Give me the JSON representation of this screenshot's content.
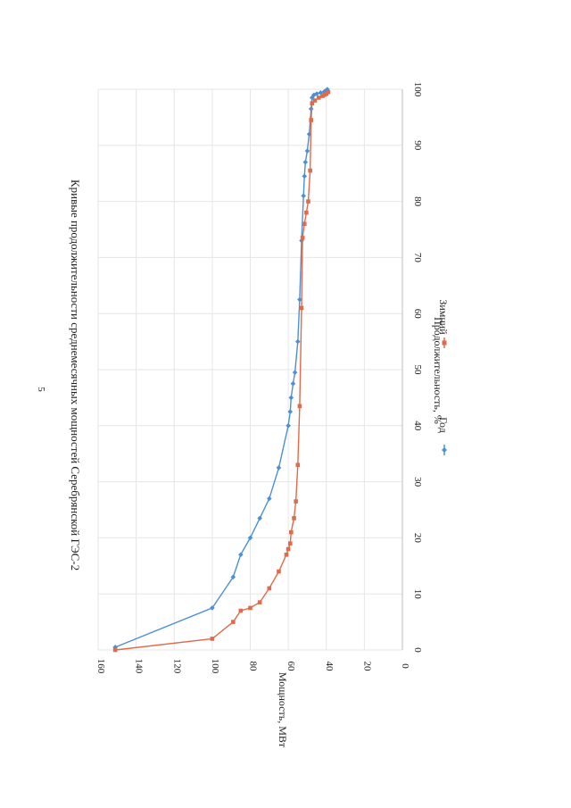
{
  "page": {
    "number": "5"
  },
  "chart_data": {
    "type": "line",
    "title": "Кривые продолжительности среднемесячных мощностей Серебрянской ГЭС-2",
    "xlabel": "Продолжительность, %",
    "ylabel": "Мощность, МВт",
    "xlim": [
      0,
      100
    ],
    "ylim": [
      0,
      160
    ],
    "xticks": [
      "0",
      "10",
      "20",
      "30",
      "40",
      "50",
      "60",
      "70",
      "80",
      "90",
      "100"
    ],
    "yticks": [
      "0",
      "20",
      "40",
      "60",
      "80",
      "100",
      "120",
      "140",
      "160"
    ],
    "grid": true,
    "legend": "bottom",
    "series": [
      {
        "name": "Год",
        "color": "#4a90d9",
        "marker": "diamond",
        "points": [
          [
            0.5,
            151
          ],
          [
            7.5,
            100
          ],
          [
            13,
            89
          ],
          [
            17,
            85
          ],
          [
            20,
            80
          ],
          [
            23.5,
            75
          ],
          [
            27,
            70
          ],
          [
            32.5,
            65
          ],
          [
            40,
            60
          ],
          [
            42.5,
            59
          ],
          [
            45,
            58.5
          ],
          [
            47.5,
            57.5
          ],
          [
            49.5,
            56.5
          ],
          [
            55,
            55
          ],
          [
            62.5,
            54
          ],
          [
            73,
            53
          ],
          [
            81,
            52
          ],
          [
            84.5,
            51.5
          ],
          [
            87,
            51
          ],
          [
            89,
            50
          ],
          [
            92,
            49
          ],
          [
            96.5,
            48
          ],
          [
            98.5,
            47.5
          ],
          [
            99,
            46.5
          ],
          [
            99.2,
            45
          ],
          [
            99.4,
            43
          ],
          [
            99.6,
            41
          ],
          [
            99.8,
            40
          ],
          [
            100,
            39.5
          ]
        ]
      },
      {
        "name": "Зимний",
        "color": "#e06a4a",
        "marker": "square",
        "points": [
          [
            0,
            151
          ],
          [
            2,
            100
          ],
          [
            5,
            89
          ],
          [
            7,
            85
          ],
          [
            7.5,
            80
          ],
          [
            8.5,
            75
          ],
          [
            11,
            70
          ],
          [
            14,
            65
          ],
          [
            17,
            61
          ],
          [
            18,
            60
          ],
          [
            19,
            59
          ],
          [
            21,
            58.5
          ],
          [
            23.5,
            57
          ],
          [
            26.5,
            56
          ],
          [
            33,
            55
          ],
          [
            43.5,
            54
          ],
          [
            61,
            53
          ],
          [
            73.5,
            52.5
          ],
          [
            76,
            51.5
          ],
          [
            78,
            50.5
          ],
          [
            80,
            49.5
          ],
          [
            85.5,
            48.5
          ],
          [
            94.5,
            48
          ],
          [
            97.5,
            47.5
          ],
          [
            98,
            46
          ],
          [
            98.5,
            44
          ],
          [
            98.8,
            42
          ],
          [
            99,
            41
          ],
          [
            99.2,
            40
          ],
          [
            99.5,
            39
          ]
        ]
      }
    ]
  }
}
